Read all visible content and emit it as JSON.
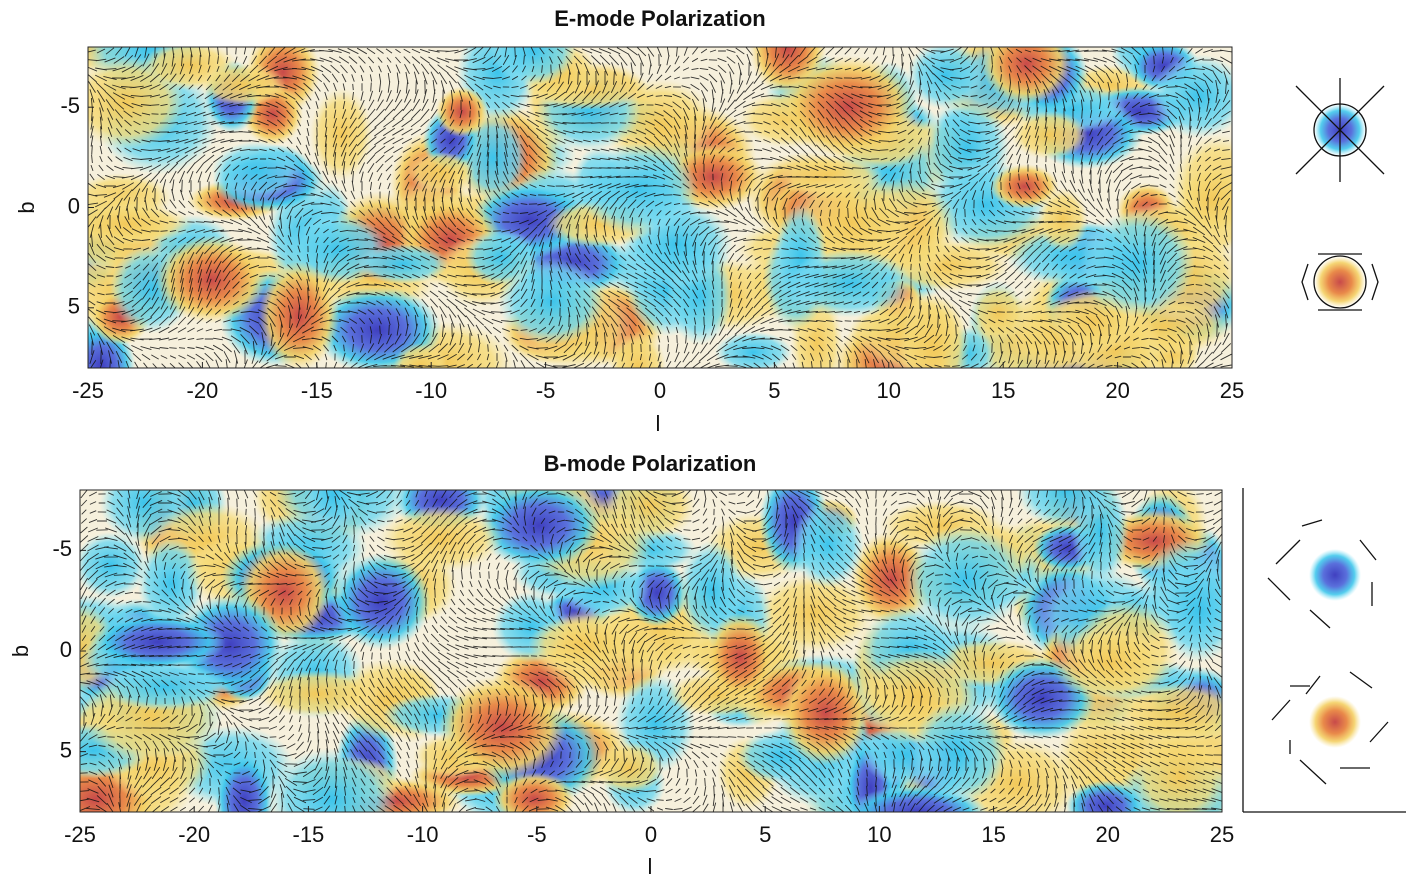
{
  "chart_data": [
    {
      "type": "heatmap",
      "title": "E-mode Polarization",
      "xlabel": "l",
      "ylabel": "b",
      "xlim": [
        -25,
        25
      ],
      "ylim": [
        -8,
        8
      ],
      "y_inverted": true,
      "xticks": [
        -25,
        -20,
        -15,
        -10,
        -5,
        0,
        5,
        10,
        15,
        20,
        25
      ],
      "yticks": [
        -5,
        0,
        5
      ]
    },
    {
      "type": "heatmap",
      "title": "B-mode Polarization",
      "xlabel": "l",
      "ylabel": "b",
      "xlim": [
        -25,
        25
      ],
      "ylim": [
        -8,
        8
      ],
      "y_inverted": true,
      "xticks": [
        -25,
        -20,
        -15,
        -10,
        -5,
        0,
        5,
        10,
        15,
        20,
        25
      ],
      "yticks": [
        -5,
        0,
        5
      ]
    }
  ]
}
